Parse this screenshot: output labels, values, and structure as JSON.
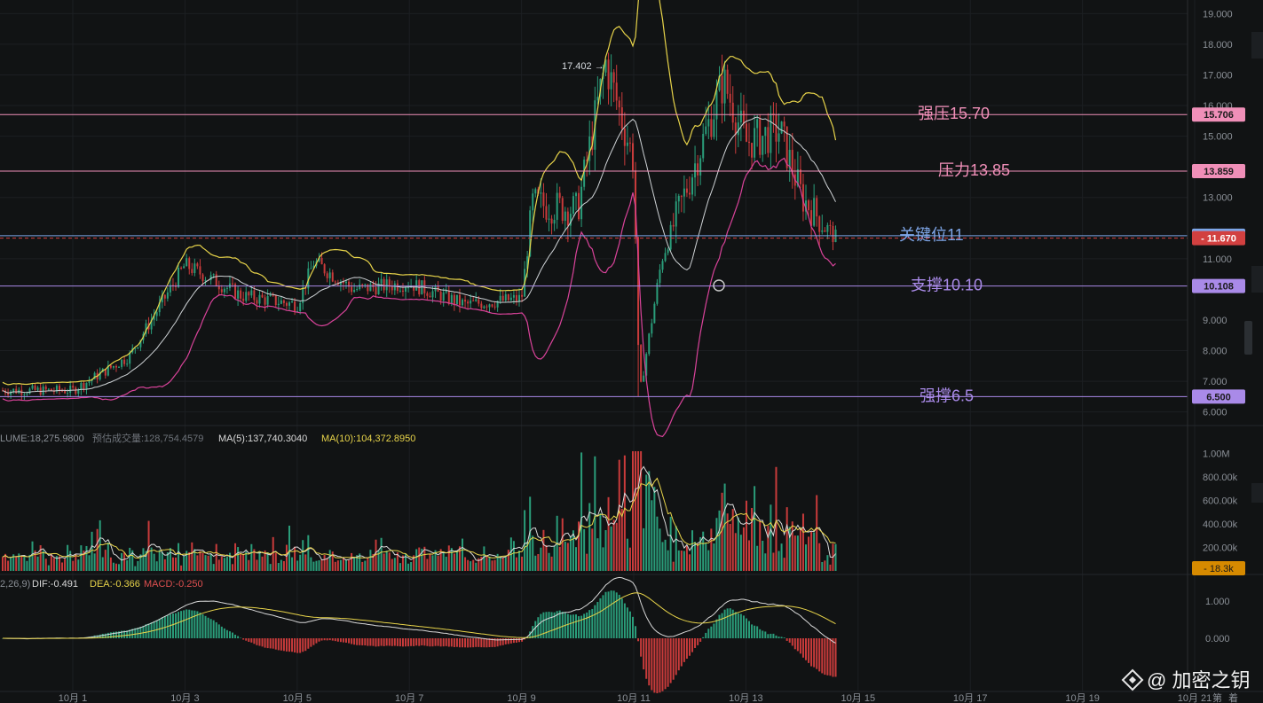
{
  "colors": {
    "background": "#111314",
    "up": "#2a9d7a",
    "down": "#c93b3b",
    "grid": "#1c1f22",
    "text": "#8b9097",
    "bb_upper": "#e8d44a",
    "bb_mid": "#cfd3d6",
    "bb_lower": "#d9439a",
    "ma5": "#d9d9d9",
    "ma10": "#e8d44a",
    "dif": "#d9d9d9",
    "dea": "#e8d44a",
    "resist_strong": "#f08fb8",
    "resist": "#f08fb8",
    "key": "#7ea6e8",
    "support": "#a98ae8",
    "support_strong": "#a98ae8",
    "current_price": "#d24040",
    "volume_tag": "#d68a00"
  },
  "price_axis": {
    "ticks": [
      "19.000",
      "18.000",
      "17.000",
      "16.000",
      "15.000",
      "13.000",
      "11.000",
      "9.000",
      "8.000",
      "7.000",
      "6.000"
    ]
  },
  "volume_axis": {
    "ticks": [
      "1.00M",
      "800.00k",
      "600.00k",
      "400.00k",
      "200.00k"
    ]
  },
  "macd_axis": {
    "ticks": [
      "1.000",
      "0.000"
    ]
  },
  "time_axis": {
    "ticks": [
      "10月 1",
      "10月 3",
      "10月 5",
      "10月 7",
      "10月 9",
      "10月 11",
      "10月 13",
      "10月 15",
      "10月 17",
      "10月 19",
      "10月 21"
    ]
  },
  "levels": [
    {
      "id": "resist-strong",
      "text": "强压15.70",
      "tag": "15.706",
      "price": 15.706,
      "kind": "resist_strong"
    },
    {
      "id": "resist",
      "text": "压力13.85",
      "tag": "13.859",
      "price": 13.859,
      "kind": "resist"
    },
    {
      "id": "key",
      "text": "关键位11",
      "tag": "",
      "price": 11.75,
      "kind": "key"
    },
    {
      "id": "support",
      "text": "支撑10.10",
      "tag": "10.108",
      "price": 10.108,
      "kind": "support"
    },
    {
      "id": "support-strong",
      "text": "强撑6.5",
      "tag": "6.500",
      "price": 6.5,
      "kind": "support_strong"
    }
  ],
  "current_price": {
    "tag": "11.670",
    "price": 11.67
  },
  "peak_label": "17.402 →",
  "volume_legend": {
    "volume": "LUME:18,275.9800",
    "estimate": "预估成交量:128,754.4579",
    "ma5": "MA(5):137,740.3040",
    "ma10": "MA(10):104,372.8950"
  },
  "volume_tag": "18.3k",
  "macd_legend": {
    "params": "2,26,9)",
    "dif": "DIF:-0.491",
    "dea": "DEA:-0.366",
    "macd": "MACD:-0.250"
  },
  "corner_labels": [
    "第",
    "着"
  ],
  "watermark": "@ 加密之钥",
  "chart_data": {
    "type": "candlestick",
    "x_range": [
      "10月 1",
      "10月 15"
    ],
    "price_range": [
      5.7,
      19.3
    ],
    "key_points": [
      {
        "x": "10月 1",
        "price": 6.7
      },
      {
        "x": "10月 2",
        "price": 7.8
      },
      {
        "x": "10月 3",
        "price": 10.8
      },
      {
        "x": "10月 4",
        "price": 9.8
      },
      {
        "x": "10月 5",
        "price": 9.5
      },
      {
        "x": "10月 5.3",
        "price": 10.9
      },
      {
        "x": "10月 6",
        "price": 10.0
      },
      {
        "x": "10月 7",
        "price": 10.2
      },
      {
        "x": "10月 8",
        "price": 9.5
      },
      {
        "x": "10月 9",
        "price": 9.7
      },
      {
        "x": "10月 9.2",
        "price": 12.8
      },
      {
        "x": "10月 10",
        "price": 12.6
      },
      {
        "x": "10月 10.5",
        "price": 17.402
      },
      {
        "x": "10月 11",
        "price": 14.2
      },
      {
        "x": "10月 11.1",
        "price": 6.5
      },
      {
        "x": "10月 11.5",
        "price": 11.0
      },
      {
        "x": "10月 12",
        "price": 13.6
      },
      {
        "x": "10月 12.6",
        "price": 16.8
      },
      {
        "x": "10月 13",
        "price": 14.8
      },
      {
        "x": "10月 13.6",
        "price": 15.2
      },
      {
        "x": "10月 14",
        "price": 13.0
      },
      {
        "x": "10月 14.6",
        "price": 11.67
      }
    ]
  }
}
